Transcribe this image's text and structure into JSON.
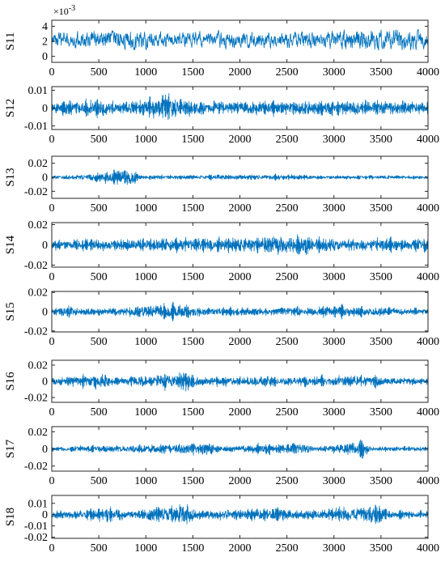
{
  "chart_data": [
    {
      "type": "line",
      "ylabel": "S11",
      "exponent_label": "×10",
      "exponent_power": "-3",
      "xlim": [
        0,
        4000
      ],
      "ylim": [
        -0.0008,
        0.0048
      ],
      "xticks": [
        0,
        500,
        1000,
        1500,
        2000,
        2500,
        3000,
        3500,
        4000
      ],
      "xtick_labels": [
        "0",
        "500",
        "1000",
        "1500",
        "2000",
        "2500",
        "3000",
        "3500",
        "4000"
      ],
      "yticks": [
        0,
        0.002,
        0.004
      ],
      "ytick_labels": [
        "0",
        "2",
        "4"
      ],
      "series_style": "mean-offset",
      "mean": 0.0022,
      "amplitude": 0.001,
      "envelope": [
        [
          0,
          0.9
        ],
        [
          850,
          1.3
        ],
        [
          1200,
          1.0
        ],
        [
          2600,
          1.0
        ],
        [
          3800,
          1.5
        ],
        [
          4000,
          1.0
        ]
      ]
    },
    {
      "type": "line",
      "ylabel": "S12",
      "xlim": [
        0,
        4000
      ],
      "ylim": [
        -0.012,
        0.012
      ],
      "xticks": [
        0,
        500,
        1000,
        1500,
        2000,
        2500,
        3000,
        3500,
        4000
      ],
      "xtick_labels": [
        "0",
        "500",
        "1000",
        "1500",
        "2000",
        "2500",
        "3000",
        "3500",
        "4000"
      ],
      "yticks": [
        -0.01,
        0,
        0.01
      ],
      "ytick_labels": [
        "-0.01",
        "0",
        "0.01"
      ],
      "series_style": "burst",
      "mean": 0,
      "amplitude": 0.003,
      "envelope": [
        [
          0,
          1.0
        ],
        [
          420,
          1.6
        ],
        [
          700,
          1.0
        ],
        [
          1000,
          1.5
        ],
        [
          1250,
          2.8
        ],
        [
          1400,
          1.2
        ],
        [
          2500,
          1.2
        ],
        [
          3400,
          1.3
        ],
        [
          3700,
          1.4
        ],
        [
          4000,
          1.2
        ]
      ]
    },
    {
      "type": "line",
      "ylabel": "S13",
      "xlim": [
        0,
        4000
      ],
      "ylim": [
        -0.03,
        0.03
      ],
      "xticks": [
        0,
        500,
        1000,
        1500,
        2000,
        2500,
        3000,
        3500,
        4000
      ],
      "xtick_labels": [
        "0",
        "500",
        "1000",
        "1500",
        "2000",
        "2500",
        "3000",
        "3500",
        "4000"
      ],
      "yticks": [
        -0.02,
        0,
        0.02
      ],
      "ytick_labels": [
        "-0.02",
        "0",
        "0.02"
      ],
      "series_style": "burst",
      "mean": 0,
      "amplitude": 0.0025,
      "envelope": [
        [
          0,
          1.0
        ],
        [
          300,
          1.4
        ],
        [
          820,
          4.5
        ],
        [
          860,
          4.5
        ],
        [
          950,
          1.2
        ],
        [
          2500,
          1.5
        ],
        [
          2800,
          1.0
        ],
        [
          4000,
          1.0
        ]
      ]
    },
    {
      "type": "line",
      "ylabel": "S14",
      "xlim": [
        0,
        4000
      ],
      "ylim": [
        -0.022,
        0.022
      ],
      "xticks": [
        0,
        500,
        1000,
        1500,
        2000,
        2500,
        3000,
        3500,
        4000
      ],
      "xtick_labels": [
        "0",
        "500",
        "1000",
        "1500",
        "2000",
        "2500",
        "3000",
        "3500",
        "4000"
      ],
      "yticks": [
        -0.02,
        0,
        0.02
      ],
      "ytick_labels": [
        "-0.02",
        "0",
        "0.02"
      ],
      "series_style": "burst",
      "mean": 0,
      "amplitude": 0.0045,
      "envelope": [
        [
          0,
          1.1
        ],
        [
          600,
          1.2
        ],
        [
          1900,
          1.4
        ],
        [
          2700,
          2.2
        ],
        [
          2900,
          1.5
        ],
        [
          3500,
          1.3
        ],
        [
          4000,
          1.4
        ]
      ]
    },
    {
      "type": "line",
      "ylabel": "S15",
      "xlim": [
        0,
        4000
      ],
      "ylim": [
        -0.021,
        0.021
      ],
      "xticks": [
        0,
        500,
        1000,
        1500,
        2000,
        2500,
        3000,
        3500,
        4000
      ],
      "xtick_labels": [
        "0",
        "500",
        "1000",
        "1500",
        "2000",
        "2500",
        "3000",
        "3500",
        "4000"
      ],
      "yticks": [
        -0.02,
        0,
        0.02
      ],
      "ytick_labels": [
        "-0.02",
        "0",
        "0.02"
      ],
      "series_style": "burst",
      "mean": 0,
      "amplitude": 0.003,
      "envelope": [
        [
          0,
          1.0
        ],
        [
          180,
          2.2
        ],
        [
          300,
          1.0
        ],
        [
          1450,
          2.5
        ],
        [
          1600,
          1.2
        ],
        [
          2300,
          1.5
        ],
        [
          3100,
          1.8
        ],
        [
          3600,
          1.4
        ],
        [
          4000,
          1.0
        ]
      ]
    },
    {
      "type": "line",
      "ylabel": "S16",
      "xlim": [
        0,
        4000
      ],
      "ylim": [
        -0.026,
        0.026
      ],
      "xticks": [
        0,
        500,
        1000,
        1500,
        2000,
        2500,
        3000,
        3500,
        4000
      ],
      "xtick_labels": [
        "0",
        "500",
        "1000",
        "1500",
        "2000",
        "2500",
        "3000",
        "3500",
        "4000"
      ],
      "yticks": [
        -0.02,
        0,
        0.02
      ],
      "ytick_labels": [
        "-0.02",
        "0",
        "0.02"
      ],
      "series_style": "burst",
      "mean": 0,
      "amplitude": 0.004,
      "envelope": [
        [
          0,
          1.0
        ],
        [
          520,
          2.4
        ],
        [
          700,
          1.0
        ],
        [
          1420,
          3.0
        ],
        [
          1600,
          1.3
        ],
        [
          2300,
          1.5
        ],
        [
          2650,
          1.4
        ],
        [
          3400,
          1.9
        ],
        [
          3600,
          1.1
        ],
        [
          4000,
          1.0
        ]
      ]
    },
    {
      "type": "line",
      "ylabel": "S17",
      "xlim": [
        0,
        4000
      ],
      "ylim": [
        -0.026,
        0.026
      ],
      "xticks": [
        0,
        500,
        1000,
        1500,
        2000,
        2500,
        3000,
        3500,
        4000
      ],
      "xtick_labels": [
        "0",
        "500",
        "1000",
        "1500",
        "2000",
        "2500",
        "3000",
        "3500",
        "4000"
      ],
      "yticks": [
        -0.02,
        0,
        0.02
      ],
      "ytick_labels": [
        "-0.02",
        "0",
        "0.02"
      ],
      "series_style": "burst",
      "mean": 0,
      "amplitude": 0.0025,
      "envelope": [
        [
          0,
          1.0
        ],
        [
          1450,
          2.5
        ],
        [
          1650,
          3.2
        ],
        [
          1750,
          1.2
        ],
        [
          2700,
          3.0
        ],
        [
          2800,
          1.0
        ],
        [
          3300,
          4.0
        ],
        [
          3400,
          1.2
        ],
        [
          4000,
          1.0
        ]
      ]
    },
    {
      "type": "line",
      "ylabel": "S18",
      "xlim": [
        0,
        4000
      ],
      "ylim": [
        -0.021,
        0.017
      ],
      "xticks": [
        0,
        500,
        1000,
        1500,
        2000,
        2500,
        3000,
        3500,
        4000
      ],
      "xtick_labels": [
        "0",
        "500",
        "1000",
        "1500",
        "2000",
        "2500",
        "3000",
        "3500",
        "4000"
      ],
      "yticks": [
        -0.02,
        -0.01,
        0,
        0.01
      ],
      "ytick_labels": [
        "-0.02",
        "-0.01",
        "0",
        "0.01"
      ],
      "series_style": "burst",
      "mean": 0,
      "amplitude": 0.003,
      "envelope": [
        [
          0,
          1.0
        ],
        [
          700,
          2.0
        ],
        [
          850,
          1.0
        ],
        [
          1420,
          3.2
        ],
        [
          1550,
          1.4
        ],
        [
          2450,
          1.8
        ],
        [
          2600,
          1.2
        ],
        [
          3450,
          2.6
        ],
        [
          3600,
          1.1
        ],
        [
          4000,
          1.0
        ]
      ]
    }
  ],
  "colors": {
    "series": "#0072BD",
    "axis": "#262626",
    "background": "#ffffff"
  }
}
